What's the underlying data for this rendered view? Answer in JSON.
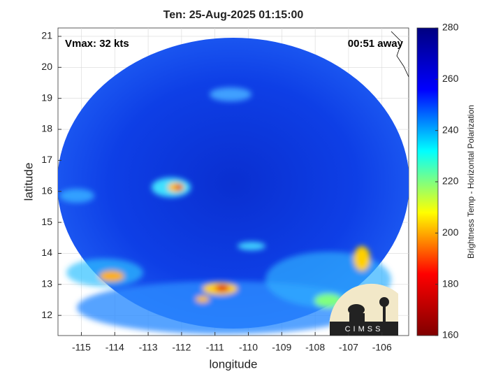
{
  "chart_data": {
    "type": "map",
    "title": "Ten: 25-Aug-2025 01:15:00",
    "annotations": [
      "Vmax: 32 kts",
      "00:51 away"
    ],
    "x_label": "longitude",
    "y_label": "latitude",
    "xlim": [
      -115.7,
      -105.2
    ],
    "xticks": [
      -115,
      -114,
      -113,
      -112,
      -111,
      -110,
      -109,
      -108,
      -107,
      -106
    ],
    "ylim": [
      11.35,
      21.27
    ],
    "yticks": [
      12,
      13,
      14,
      15,
      16,
      17,
      18,
      19,
      20,
      21
    ],
    "grid": true,
    "colorbar": {
      "label": "Brightness Temp - Horizontal Polarization",
      "lim": [
        160,
        280
      ],
      "ticks": [
        160,
        180,
        200,
        220,
        240,
        260,
        280
      ],
      "colormap": [
        "#800000",
        "#ff0000",
        "#ffff00",
        "#00ffff",
        "#0000ff",
        "#000080"
      ]
    },
    "logo": "CIMSS"
  }
}
